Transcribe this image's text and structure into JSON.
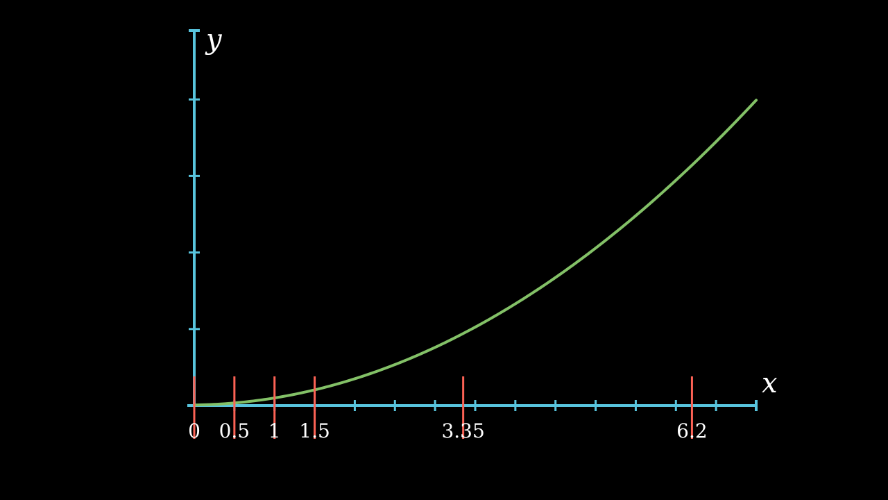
{
  "chart_data": {
    "type": "line",
    "title": "",
    "xlabel": "x",
    "ylabel": "y",
    "xlim": [
      0,
      7
    ],
    "ylim": [
      0,
      2.45
    ],
    "x_tick_step": 0.5,
    "y_tick_step": 0.5,
    "grid": false,
    "curve_points": [
      {
        "x": 0,
        "y": 0
      },
      {
        "x": 0.5,
        "y": 0.02
      },
      {
        "x": 1,
        "y": 0.05
      },
      {
        "x": 1.5,
        "y": 0.1
      },
      {
        "x": 2,
        "y": 0.18
      },
      {
        "x": 2.5,
        "y": 0.27
      },
      {
        "x": 3,
        "y": 0.38
      },
      {
        "x": 3.5,
        "y": 0.51
      },
      {
        "x": 4,
        "y": 0.66
      },
      {
        "x": 4.5,
        "y": 0.84
      },
      {
        "x": 5,
        "y": 1.03
      },
      {
        "x": 5.5,
        "y": 1.24
      },
      {
        "x": 6,
        "y": 1.47
      },
      {
        "x": 6.5,
        "y": 1.72
      },
      {
        "x": 7,
        "y": 2.0
      }
    ],
    "markers": [
      {
        "x": 0,
        "label": "0"
      },
      {
        "x": 0.5,
        "label": "0.5"
      },
      {
        "x": 1,
        "label": "1"
      },
      {
        "x": 1.5,
        "label": "1.5"
      },
      {
        "x": 3.35,
        "label": "3.35"
      },
      {
        "x": 6.2,
        "label": "6.2"
      }
    ]
  },
  "colors": {
    "background": "#000000",
    "axes": "#58c4dd",
    "curve": "#83c167",
    "markers": "#fc6255",
    "text": "#ffffff"
  }
}
